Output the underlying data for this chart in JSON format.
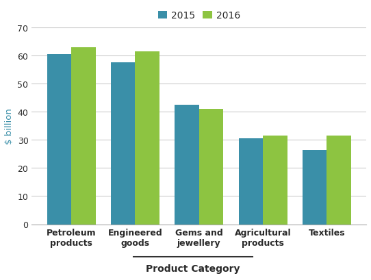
{
  "categories": [
    "Petroleum\nproducts",
    "Engineered\ngoods",
    "Gems and\njewellery",
    "Agricultural\nproducts",
    "Textiles"
  ],
  "values_2015": [
    60.5,
    57.5,
    42.5,
    30.5,
    26.5
  ],
  "values_2016": [
    63.0,
    61.5,
    41.0,
    31.5,
    31.5
  ],
  "color_2015": "#3a8fa8",
  "color_2016": "#8dc441",
  "ylabel": "$ billion",
  "xlabel": "Product Category",
  "ylim": [
    0,
    70
  ],
  "yticks": [
    0,
    10,
    20,
    30,
    40,
    50,
    60,
    70
  ],
  "legend_labels": [
    "2015",
    "2016"
  ],
  "bar_width": 0.38,
  "background_color": "#ffffff",
  "ylabel_color": "#3a8fa8",
  "tick_label_color": "#2a2a2a",
  "grid_color": "#cccccc",
  "spine_color": "#aaaaaa"
}
